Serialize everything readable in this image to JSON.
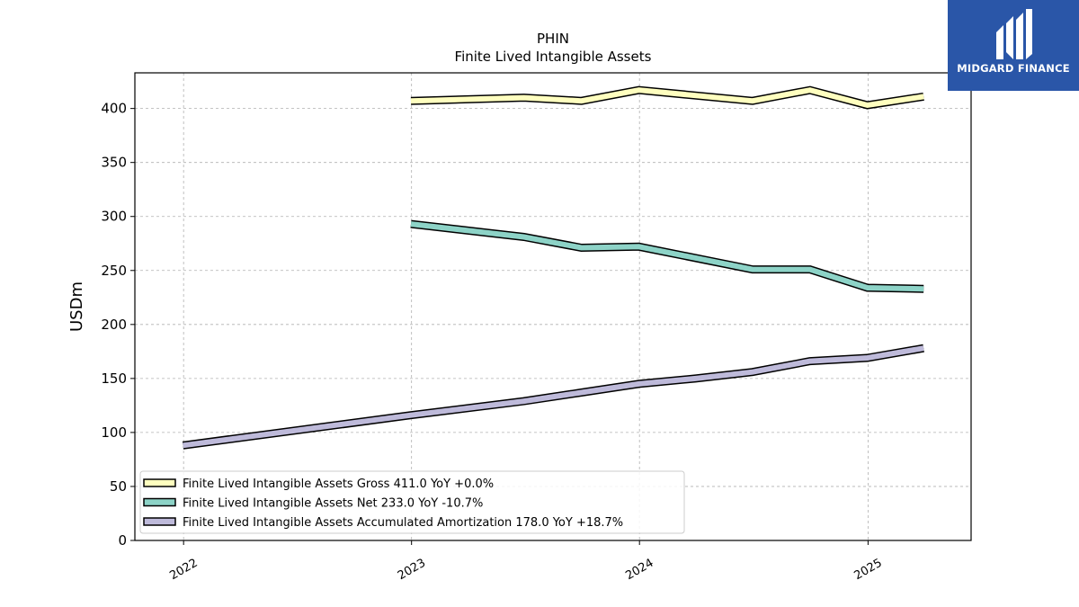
{
  "chart_data": {
    "type": "line",
    "title": "PHIN",
    "subtitle": "Finite Lived Intangible Assets",
    "xlabel": "",
    "ylabel": "USDm",
    "ylim": [
      0,
      433
    ],
    "xlim": [
      "2021-10-15",
      "2025-06-15"
    ],
    "grid": true,
    "legend_position": "lower-left",
    "x_ticks": [
      "2022",
      "2023",
      "2024",
      "2025"
    ],
    "y_ticks": [
      0,
      50,
      100,
      150,
      200,
      250,
      300,
      350,
      400
    ],
    "series": [
      {
        "name": "Finite Lived Intangible Assets Gross",
        "legend": "Finite Lived Intangible Assets Gross  411.0 YoY +0.0%",
        "color": "#ffffbf",
        "x": [
          "2022-12-31",
          "2023-06-30",
          "2023-09-30",
          "2023-12-31",
          "2024-06-30",
          "2024-09-30",
          "2024-12-31",
          "2025-03-31"
        ],
        "values": [
          407,
          410,
          407,
          417,
          407,
          417,
          403,
          411
        ]
      },
      {
        "name": "Finite Lived Intangible Assets Net",
        "legend": "Finite Lived Intangible Assets Net  233.0 YoY -10.7%",
        "color": "#8dd3c7",
        "x": [
          "2022-12-31",
          "2023-06-30",
          "2023-09-30",
          "2023-12-31",
          "2024-06-30",
          "2024-09-30",
          "2024-12-31",
          "2025-03-31"
        ],
        "values": [
          293,
          281,
          271,
          272,
          251,
          251,
          234,
          233
        ]
      },
      {
        "name": "Finite Lived Intangible Assets Accumulated Amortization",
        "legend": "Finite Lived Intangible Assets Accumulated Amortization  178.0 YoY +18.7%",
        "color": "#bebada",
        "x": [
          "2021-12-31",
          "2022-12-31",
          "2023-06-30",
          "2023-09-30",
          "2023-12-31",
          "2024-03-31",
          "2024-06-30",
          "2024-09-30",
          "2024-12-31",
          "2025-03-31"
        ],
        "values": [
          88,
          116,
          129,
          137,
          145,
          150,
          156,
          166,
          169,
          178
        ]
      }
    ]
  },
  "logo": {
    "text": "MIDGARD FINANCE",
    "bg": "#2a56a8"
  }
}
